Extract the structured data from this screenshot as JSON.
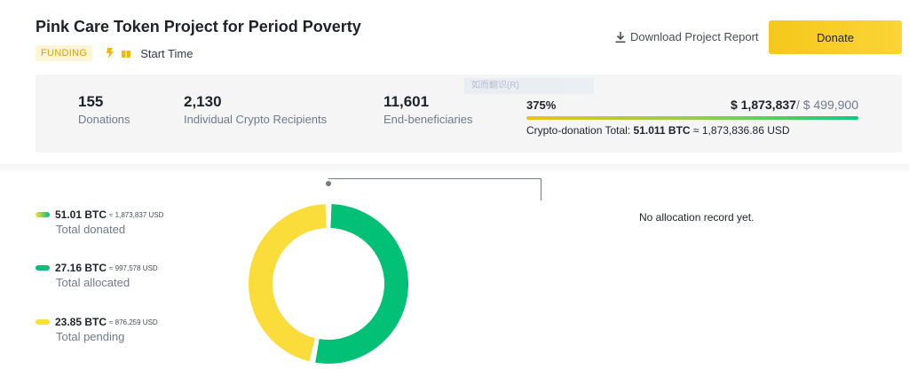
{
  "project": {
    "title": "Pink Care Token Project for Period Poverty",
    "badge": "FUNDING",
    "start_time_label": "Start Time"
  },
  "actions": {
    "download_label": "Download Project Report",
    "donate_label": "Donate"
  },
  "stats": {
    "donations": {
      "value": "155",
      "label": "Donations"
    },
    "recipients": {
      "value": "2,130",
      "label": "Individual Crypto Recipients"
    },
    "beneficiaries": {
      "value": "11,601",
      "label": "End-beneficiaries"
    },
    "overlay_text": "如而翻识(R)",
    "progress": {
      "percent_label": "375%",
      "fraction": 1.0,
      "raised": "$ 1,873,837",
      "target": "/ $ 499,900",
      "crypto_total_label": "Crypto-donation Total:",
      "crypto_total_btc": "51.011 BTC",
      "crypto_total_usd": "≈ 1,873,836.86 USD"
    }
  },
  "allocation": {
    "items": [
      {
        "btc": "51.01 BTC",
        "usd": "≈ 1,873,837 USD",
        "label": "Total donated"
      },
      {
        "btc": "27.16 BTC",
        "usd": "≈ 997,578 USD",
        "label": "Total allocated"
      },
      {
        "btc": "23.85 BTC",
        "usd": "≈ 876,259 USD",
        "label": "Total pending"
      }
    ],
    "no_record": "No allocation record yet."
  },
  "colors": {
    "accent_yellow": "#fcd535",
    "allocated_green": "#02c076",
    "pending_yellow": "#fadd3a"
  },
  "donut": {
    "allocated_btc": 27.16,
    "pending_btc": 23.85
  }
}
